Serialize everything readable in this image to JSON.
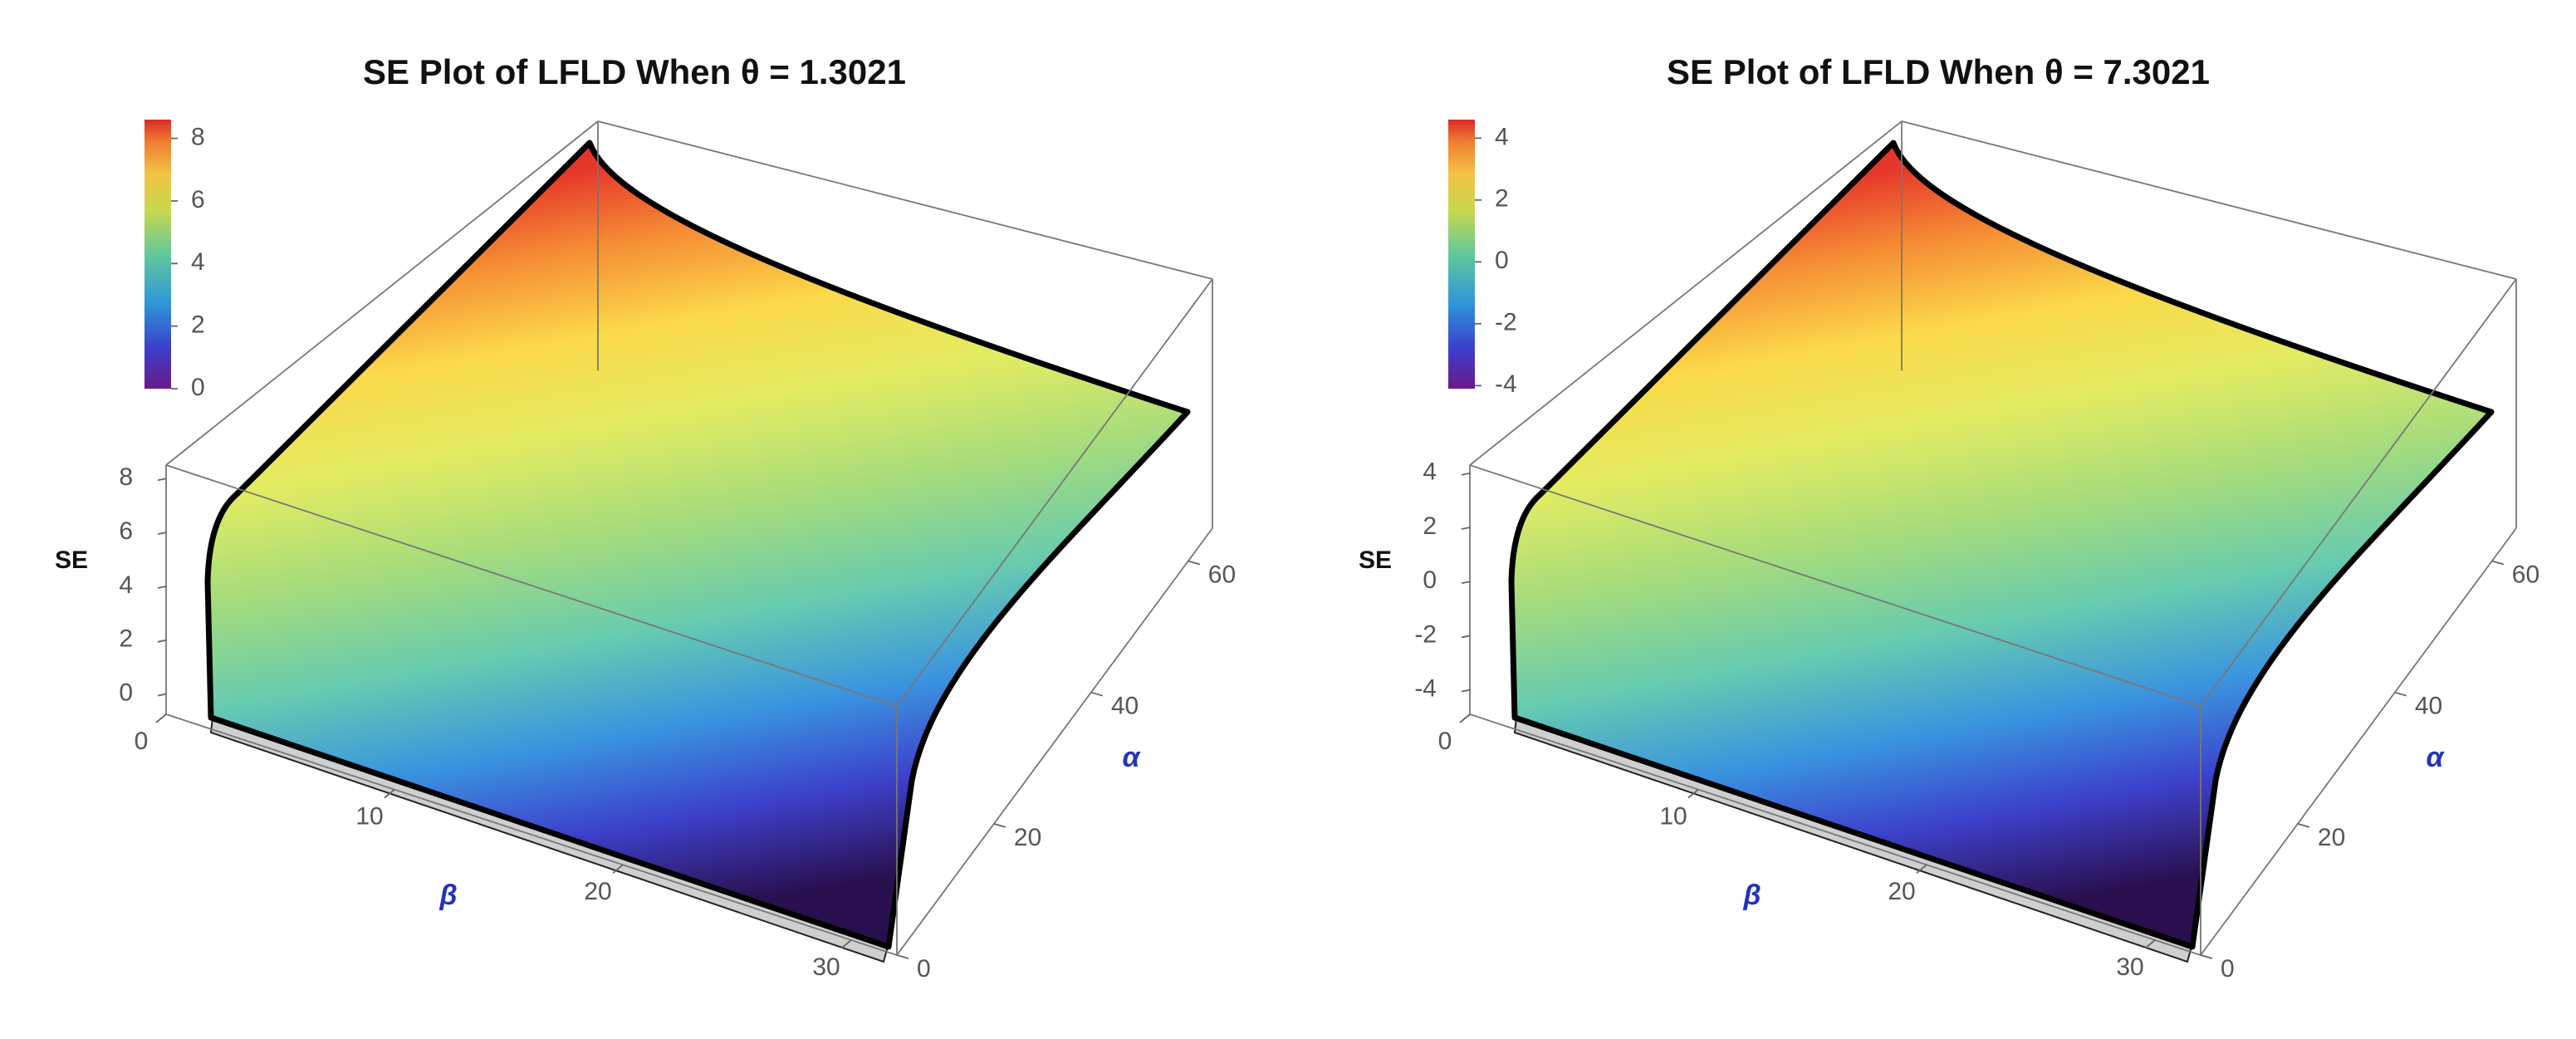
{
  "chart_data": [
    {
      "type": "surface3d",
      "title": "SE Plot of LFLD When θ = 1.3021",
      "zlabel": "SE",
      "xlabel": "β",
      "ylabel": "α",
      "xlim": [
        0,
        32
      ],
      "xticks": [
        0,
        10,
        20,
        30
      ],
      "ylim": [
        0,
        65
      ],
      "yticks": [
        0,
        20,
        40,
        60
      ],
      "zlim": [
        -0.75,
        8.5
      ],
      "zticks": [
        0,
        2,
        4,
        6,
        8
      ],
      "colorbar": {
        "lim": [
          0,
          8.6
        ],
        "ticks": [
          0,
          2,
          4,
          6,
          8
        ]
      }
    },
    {
      "type": "surface3d",
      "title": "SE Plot of LFLD When θ = 7.3021",
      "zlabel": "SE",
      "xlabel": "β",
      "ylabel": "α",
      "xlim": [
        0,
        32
      ],
      "xticks": [
        0,
        10,
        20,
        30
      ],
      "ylim": [
        0,
        65
      ],
      "yticks": [
        0,
        20,
        40,
        60
      ],
      "zlim": [
        -4.9,
        4.3
      ],
      "zticks": [
        -4,
        -2,
        0,
        2,
        4
      ],
      "colorbar": {
        "lim": [
          -4.1,
          4.6
        ],
        "ticks": [
          -4,
          -2,
          0,
          2,
          4
        ]
      }
    }
  ]
}
